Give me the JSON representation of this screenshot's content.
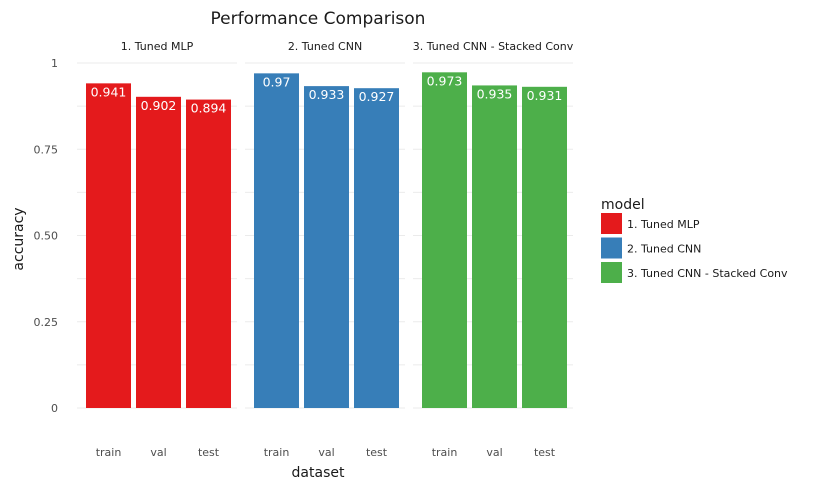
{
  "chart_data": {
    "type": "bar",
    "title": "Performance Comparison",
    "xlabel": "dataset",
    "ylabel": "accuracy",
    "categories": [
      "train",
      "val",
      "test"
    ],
    "ylim": [
      0,
      1
    ],
    "y_ticks": [
      0,
      0.25,
      0.5,
      0.75,
      1
    ],
    "y_tick_labels": [
      "0",
      "0.25",
      "0.50",
      "0.75",
      "1"
    ],
    "grid": true,
    "legend_title": "model",
    "legend_position": "right",
    "facets": [
      {
        "name": "1. Tuned MLP",
        "color": "#e41a1c",
        "values": [
          0.941,
          0.902,
          0.894
        ],
        "labels": [
          "0.941",
          "0.902",
          "0.894"
        ]
      },
      {
        "name": "2. Tuned CNN",
        "color": "#377eb8",
        "values": [
          0.97,
          0.933,
          0.927
        ],
        "labels": [
          "0.97",
          "0.933",
          "0.927"
        ]
      },
      {
        "name": "3. Tuned CNN - Stacked Conv",
        "color": "#4daf4a",
        "values": [
          0.973,
          0.935,
          0.931
        ],
        "labels": [
          "0.973",
          "0.935",
          "0.931"
        ]
      }
    ]
  }
}
